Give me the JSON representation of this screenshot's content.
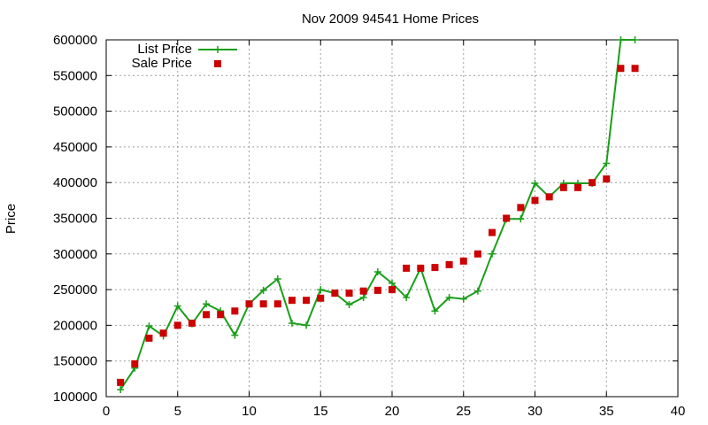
{
  "chart_data": {
    "type": "line",
    "title": "Nov 2009 94541 Home Prices",
    "xlabel": "",
    "ylabel": "Price",
    "xlim": [
      0,
      40
    ],
    "ylim": [
      100000,
      600000
    ],
    "xticks": [
      0,
      5,
      10,
      15,
      20,
      25,
      30,
      35,
      40
    ],
    "yticks": [
      100000,
      150000,
      200000,
      250000,
      300000,
      350000,
      400000,
      450000,
      500000,
      550000,
      600000
    ],
    "grid": true,
    "legend_position": "top-left",
    "series": [
      {
        "name": "List Price",
        "style": "lines+points",
        "color": "#1a9f1a",
        "x": [
          1,
          2,
          3,
          4,
          5,
          6,
          7,
          8,
          9,
          10,
          11,
          12,
          13,
          14,
          15,
          16,
          17,
          18,
          19,
          20,
          21,
          22,
          23,
          24,
          25,
          26,
          27,
          28,
          29,
          30,
          31,
          32,
          33,
          34,
          35,
          36,
          37
        ],
        "y": [
          110000,
          140000,
          199000,
          185000,
          227000,
          202000,
          230000,
          220000,
          186000,
          230000,
          249000,
          265000,
          203000,
          200000,
          250000,
          245000,
          229000,
          239000,
          275000,
          259000,
          239000,
          280000,
          220000,
          239000,
          237000,
          248000,
          300000,
          349000,
          349000,
          399000,
          380000,
          399000,
          399000,
          399000,
          427000,
          600000,
          600000
        ]
      },
      {
        "name": "Sale Price",
        "style": "points",
        "color": "#cc0000",
        "x": [
          1,
          2,
          3,
          4,
          5,
          6,
          7,
          8,
          9,
          10,
          11,
          12,
          13,
          14,
          15,
          16,
          17,
          18,
          19,
          20,
          21,
          22,
          23,
          24,
          25,
          26,
          27,
          28,
          29,
          30,
          31,
          32,
          33,
          34,
          35,
          36,
          37
        ],
        "y": [
          120000,
          146000,
          182000,
          189000,
          200000,
          203000,
          215000,
          215000,
          220000,
          230000,
          230000,
          230000,
          235000,
          235000,
          238000,
          245000,
          245000,
          248000,
          249000,
          250000,
          280000,
          280000,
          281000,
          285000,
          290000,
          300000,
          330000,
          350000,
          365000,
          375000,
          380000,
          393000,
          393000,
          400000,
          405000,
          560000,
          560000
        ]
      }
    ]
  }
}
